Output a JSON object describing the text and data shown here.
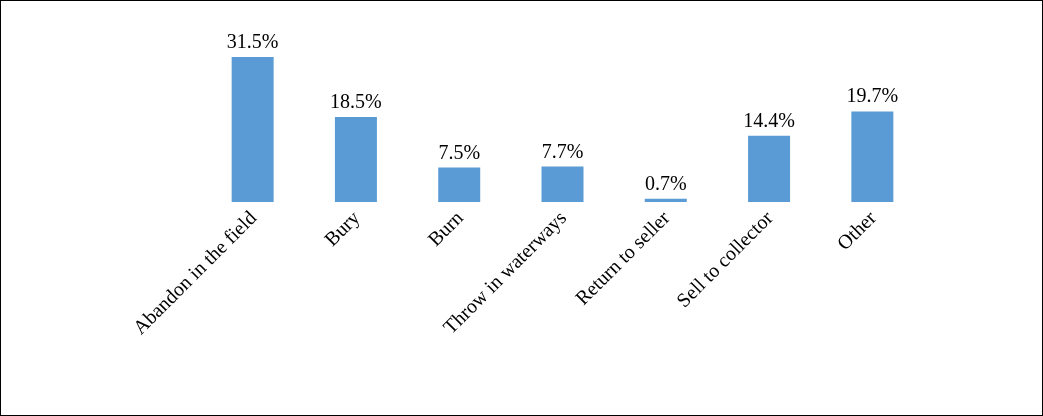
{
  "chart_data": {
    "type": "bar",
    "categories": [
      "Abandon in the field",
      "Bury",
      "Burn",
      "Throw in waterways",
      "Return to seller",
      "Sell to collector",
      "Other"
    ],
    "values": [
      31.5,
      18.5,
      7.5,
      7.7,
      0.7,
      14.4,
      19.7
    ],
    "value_labels": [
      "31.5%",
      "18.5%",
      "7.5%",
      "7.7%",
      "0.7%",
      "14.4%",
      "19.7%"
    ],
    "color": "#5b9bd5"
  }
}
